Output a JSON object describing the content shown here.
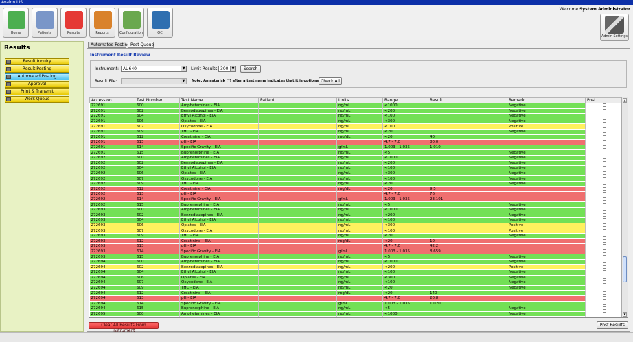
{
  "app": {
    "title": "Avalon LIS"
  },
  "toolbar": {
    "buttons": [
      {
        "label": "Home",
        "icon": "home-icon",
        "color": "#4caf50"
      },
      {
        "label": "Patients",
        "icon": "patients-icon",
        "color": "#7a96c8"
      },
      {
        "label": "Results",
        "icon": "results-icon",
        "color": "#e53935"
      },
      {
        "label": "Reports",
        "icon": "reports-icon",
        "color": "#d9822b"
      },
      {
        "label": "Configuration",
        "icon": "configuration-icon",
        "color": "#6aa84f"
      },
      {
        "label": "QC",
        "icon": "qc-chart-icon",
        "color": "#2f6fb0"
      }
    ],
    "admin_label": "Admin Settings"
  },
  "welcome": {
    "prefix": "Welcome",
    "user": "System Administrator"
  },
  "sidebar": {
    "title": "Results",
    "items": [
      {
        "label": "Result Inquiry",
        "active": false
      },
      {
        "label": "Result Posting",
        "active": false
      },
      {
        "label": "Automated Posting",
        "active": true
      },
      {
        "label": "Approval",
        "active": false
      },
      {
        "label": "Print & Transmit",
        "active": false
      },
      {
        "label": "Work Queue",
        "active": false
      }
    ]
  },
  "tabs": [
    {
      "label": "Automated Posting",
      "active": true
    },
    {
      "label": "Post Queue",
      "active": false
    }
  ],
  "review": {
    "title": "Instrument Result Review",
    "instrument_label": "Instrument:",
    "instrument_value": "AU640",
    "limit_label": "Limit Results:",
    "limit_value": "300",
    "search_label": "Search",
    "result_file_label": "Result File:",
    "result_file_value": "",
    "note": "Note: An asterisk (*) after a test name indicates that it is optional",
    "check_all_label": "Check All"
  },
  "table": {
    "columns": [
      "Accession",
      "Test Number",
      "Test Name",
      "Patient",
      "Units",
      "Range",
      "Result",
      "Remark",
      "Post"
    ],
    "rows": [
      {
        "s": "g",
        "c": [
          "272691",
          "600",
          "Amphetamines - EIA",
          "",
          "ng/mL",
          "<1000",
          "",
          "Negative"
        ]
      },
      {
        "s": "g",
        "c": [
          "272691",
          "602",
          "Benzodiazepines - EIA",
          "",
          "ng/mL",
          "<200",
          "",
          "Negative"
        ]
      },
      {
        "s": "g",
        "c": [
          "272691",
          "604",
          "Ethyl Alcohol - EIA",
          "",
          "ng/mL",
          "<100",
          "",
          "Negative"
        ]
      },
      {
        "s": "g",
        "c": [
          "272691",
          "606",
          "Opiates - EIA",
          "",
          "ng/mL",
          "<300",
          "",
          "Negative"
        ]
      },
      {
        "s": "y",
        "c": [
          "272691",
          "607",
          "Oxycodone - EIA",
          "",
          "ng/mL",
          "<100",
          "",
          "Positive"
        ]
      },
      {
        "s": "g",
        "c": [
          "272691",
          "609",
          "THC - EIA",
          "",
          "ng/mL",
          "<20",
          "",
          "Negative"
        ]
      },
      {
        "s": "g",
        "c": [
          "272691",
          "612",
          "Creatinine - EIA",
          "",
          "mg/dL",
          "<20",
          "40",
          ""
        ]
      },
      {
        "s": "r",
        "c": [
          "272691",
          "613",
          "pH - EIA",
          "",
          "",
          "4.7 - 7.0",
          "80.0",
          ""
        ]
      },
      {
        "s": "g",
        "c": [
          "272691",
          "614",
          "Specific Gravity - EIA",
          "",
          "g/mL",
          "1.003 - 1.035",
          "1.010",
          ""
        ]
      },
      {
        "s": "g",
        "c": [
          "272691",
          "615",
          "Buprenorphine - EIA",
          "",
          "ng/mL",
          "<5",
          "",
          "Negative"
        ]
      },
      {
        "s": "g",
        "c": [
          "272692",
          "600",
          "Amphetamines - EIA",
          "",
          "ng/mL",
          "<1000",
          "",
          "Negative"
        ]
      },
      {
        "s": "g",
        "c": [
          "272692",
          "602",
          "Benzodiazepines - EIA",
          "",
          "ng/mL",
          "<200",
          "",
          "Negative"
        ]
      },
      {
        "s": "g",
        "c": [
          "272692",
          "604",
          "Ethyl Alcohol - EIA",
          "",
          "ng/mL",
          "<100",
          "",
          "Negative"
        ]
      },
      {
        "s": "g",
        "c": [
          "272692",
          "606",
          "Opiates - EIA",
          "",
          "ng/mL",
          "<300",
          "",
          "Negative"
        ]
      },
      {
        "s": "g",
        "c": [
          "272692",
          "607",
          "Oxycodone - EIA",
          "",
          "ng/mL",
          "<100",
          "",
          "Negative"
        ]
      },
      {
        "s": "g",
        "c": [
          "272692",
          "609",
          "THC - EIA",
          "",
          "ng/mL",
          "<20",
          "",
          "Negative"
        ]
      },
      {
        "s": "r",
        "c": [
          "272692",
          "612",
          "Creatinine - EIA",
          "",
          "mg/dL",
          "<20",
          "9.5",
          ""
        ]
      },
      {
        "s": "r",
        "c": [
          "272692",
          "613",
          "pH - EIA",
          "",
          "",
          "4.7 - 7.0",
          "76",
          ""
        ]
      },
      {
        "s": "r",
        "c": [
          "272692",
          "614",
          "Specific Gravity - EIA",
          "",
          "g/mL",
          "1.003 - 1.035",
          "23.101",
          ""
        ]
      },
      {
        "s": "g",
        "c": [
          "272692",
          "615",
          "Buprenorphine - EIA",
          "",
          "ng/mL",
          "<5",
          "",
          "Negative"
        ]
      },
      {
        "s": "g",
        "c": [
          "272693",
          "600",
          "Amphetamines - EIA",
          "",
          "ng/mL",
          "<1000",
          "",
          "Negative"
        ]
      },
      {
        "s": "g",
        "c": [
          "272693",
          "602",
          "Benzodiazepines - EIA",
          "",
          "ng/mL",
          "<200",
          "",
          "Negative"
        ]
      },
      {
        "s": "g",
        "c": [
          "272693",
          "604",
          "Ethyl Alcohol - EIA",
          "",
          "ng/mL",
          "<100",
          "",
          "Negative"
        ]
      },
      {
        "s": "y",
        "c": [
          "272693",
          "606",
          "Opiates - EIA",
          "",
          "ng/mL",
          "<300",
          "",
          "Positive"
        ]
      },
      {
        "s": "y",
        "c": [
          "272693",
          "607",
          "Oxycodone - EIA",
          "",
          "ng/mL",
          "<100",
          "",
          "Positive"
        ]
      },
      {
        "s": "g",
        "c": [
          "272693",
          "609",
          "THC - EIA",
          "",
          "ng/mL",
          "<20",
          "",
          "Negative"
        ]
      },
      {
        "s": "r",
        "c": [
          "272693",
          "612",
          "Creatinine - EIA",
          "",
          "mg/dL",
          "<20",
          "10",
          ""
        ]
      },
      {
        "s": "r",
        "c": [
          "272693",
          "613",
          "pH - EIA",
          "",
          "",
          "4.7 - 7.0",
          "42.2",
          ""
        ]
      },
      {
        "s": "r",
        "c": [
          "272693",
          "614",
          "Specific Gravity - EIA",
          "",
          "g/mL",
          "1.003 - 1.035",
          "8.659",
          ""
        ]
      },
      {
        "s": "g",
        "c": [
          "272693",
          "615",
          "Buprenorphine - EIA",
          "",
          "ng/mL",
          "<5",
          "",
          "Negative"
        ]
      },
      {
        "s": "g",
        "c": [
          "272694",
          "600",
          "Amphetamines - EIA",
          "",
          "ng/mL",
          "<1000",
          "",
          "Negative"
        ]
      },
      {
        "s": "y",
        "c": [
          "272694",
          "602",
          "Benzodiazepines - EIA",
          "",
          "ng/mL",
          "<200",
          "",
          "Positive"
        ]
      },
      {
        "s": "g",
        "c": [
          "272694",
          "604",
          "Ethyl Alcohol - EIA",
          "",
          "ng/mL",
          "<100",
          "",
          "Negative"
        ]
      },
      {
        "s": "g",
        "c": [
          "272694",
          "606",
          "Opiates - EIA",
          "",
          "ng/mL",
          "<300",
          "",
          "Negative"
        ]
      },
      {
        "s": "g",
        "c": [
          "272694",
          "607",
          "Oxycodone - EIA",
          "",
          "ng/mL",
          "<100",
          "",
          "Negative"
        ]
      },
      {
        "s": "g",
        "c": [
          "272694",
          "609",
          "THC - EIA",
          "",
          "ng/mL",
          "<20",
          "",
          "Negative"
        ]
      },
      {
        "s": "g",
        "c": [
          "272694",
          "612",
          "Creatinine - EIA",
          "",
          "mg/dL",
          "<20",
          "140",
          ""
        ]
      },
      {
        "s": "r",
        "c": [
          "272694",
          "613",
          "pH - EIA",
          "",
          "",
          "4.7 - 7.0",
          "20.8",
          ""
        ]
      },
      {
        "s": "g",
        "c": [
          "272694",
          "614",
          "Specific Gravity - EIA",
          "",
          "g/mL",
          "1.003 - 1.035",
          "1.020",
          ""
        ]
      },
      {
        "s": "g",
        "c": [
          "272694",
          "615",
          "Buprenorphine - EIA",
          "",
          "ng/mL",
          "<5",
          "",
          "Negative"
        ]
      },
      {
        "s": "g",
        "c": [
          "272695",
          "600",
          "Amphetamines - EIA",
          "",
          "ng/mL",
          "<1000",
          "",
          "Negative"
        ]
      }
    ]
  },
  "actions": {
    "clear_label": "Clear All Results From Instrument",
    "post_label": "Post Results"
  },
  "colors": {
    "pass": "#73e056",
    "warn": "#fff15e",
    "fail": "#ef6f6f",
    "selected_nav": "#4fc3ee"
  }
}
